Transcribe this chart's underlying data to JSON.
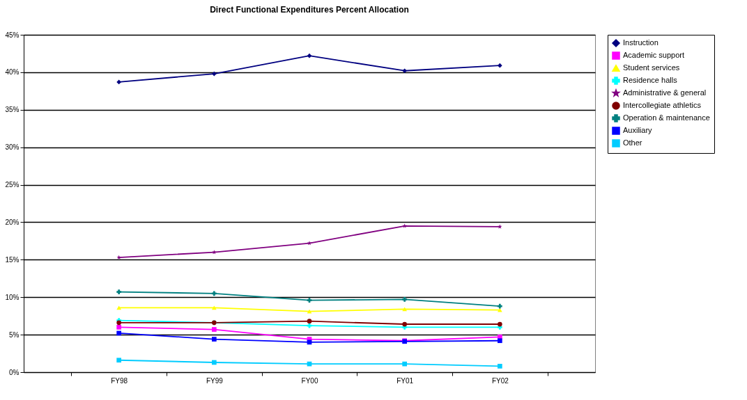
{
  "chart_data": {
    "type": "line",
    "title": "Direct Functional Expenditures Percent Allocation",
    "categories": [
      "FY98",
      "FY99",
      "FY00",
      "FY01",
      "FY02"
    ],
    "ylim": [
      0,
      45
    ],
    "yticks": [
      {
        "value": 0,
        "label": "0%"
      },
      {
        "value": 5,
        "label": "5%"
      },
      {
        "value": 10,
        "label": "10%"
      },
      {
        "value": 15,
        "label": "15%"
      },
      {
        "value": 20,
        "label": "20%"
      },
      {
        "value": 25,
        "label": "25%"
      },
      {
        "value": 30,
        "label": "30%"
      },
      {
        "value": 35,
        "label": "35%"
      },
      {
        "value": 40,
        "label": "40%"
      },
      {
        "value": 45,
        "label": "45%"
      }
    ],
    "grid": "y",
    "legend": "right",
    "line_style": "solid",
    "series": [
      {
        "name": "Instruction",
        "color": "#000080",
        "marker": "diamond",
        "values": [
          38.7,
          39.8,
          42.2,
          40.2,
          40.9
        ]
      },
      {
        "name": "Academic support",
        "color": "#ff00ff",
        "marker": "square",
        "values": [
          6.0,
          5.7,
          4.4,
          4.2,
          4.7
        ]
      },
      {
        "name": "Student services",
        "color": "#ffff00",
        "marker": "triangle",
        "values": [
          8.6,
          8.6,
          8.1,
          8.4,
          8.3
        ]
      },
      {
        "name": "Residence halls",
        "color": "#00ffff",
        "marker": "cross",
        "values": [
          6.9,
          6.6,
          6.2,
          6.0,
          6.0
        ]
      },
      {
        "name": "Administrative & general",
        "color": "#800080",
        "marker": "star",
        "values": [
          15.3,
          16.0,
          17.2,
          19.5,
          19.4
        ]
      },
      {
        "name": "Intercollegiate athletics",
        "color": "#800000",
        "marker": "circle",
        "values": [
          6.6,
          6.6,
          6.8,
          6.4,
          6.4
        ]
      },
      {
        "name": "Operation & maintenance",
        "color": "#008080",
        "marker": "cross",
        "values": [
          10.7,
          10.5,
          9.6,
          9.7,
          8.8
        ]
      },
      {
        "name": "Auxiliary",
        "color": "#0000ff",
        "marker": "square",
        "values": [
          5.2,
          4.4,
          4.0,
          4.1,
          4.2
        ]
      },
      {
        "name": "Other",
        "color": "#00ccff",
        "marker": "square",
        "values": [
          1.6,
          1.3,
          1.1,
          1.1,
          0.8
        ]
      }
    ]
  }
}
